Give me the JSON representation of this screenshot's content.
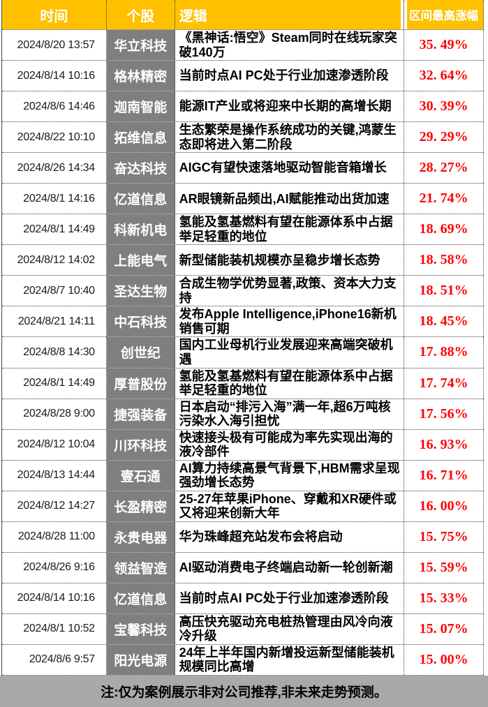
{
  "chart_data": {
    "type": "table",
    "columns": [
      "时间",
      "个股",
      "逻辑",
      "区间最高涨幅"
    ],
    "rows": [
      {
        "time": "2024/8/20 13:57",
        "stock": "华立科技",
        "logic": "《黑神话:悟空》Steam同时在线玩家突破140万",
        "pct": "35. 49%"
      },
      {
        "time": "2024/8/14 10:16",
        "stock": "格林精密",
        "logic": "当前时点AI PC处于行业加速渗透阶段",
        "pct": "32. 64%"
      },
      {
        "time": "2024/8/6 14:46",
        "stock": "迦南智能",
        "logic": "能源IT产业或将迎来中长期的高增长期",
        "pct": "30. 39%"
      },
      {
        "time": "2024/8/22 10:10",
        "stock": "拓维信息",
        "logic": "生态繁荣是操作系统成功的关键,鸿蒙生态即将进入第二阶段",
        "pct": "29. 29%"
      },
      {
        "time": "2024/8/26 14:34",
        "stock": "奋达科技",
        "logic": "AIGC有望快速落地驱动智能音箱增长",
        "pct": "28. 27%"
      },
      {
        "time": "2024/8/1 14:16",
        "stock": "亿道信息",
        "logic": "AR眼镜新品频出,AI赋能推动出货加速",
        "pct": "21. 74%"
      },
      {
        "time": "2024/8/1 14:49",
        "stock": "科新机电",
        "logic": "氢能及氢基燃料有望在能源体系中占据举足轻重的地位",
        "pct": "18. 69%"
      },
      {
        "time": "2024/8/12 14:02",
        "stock": "上能电气",
        "logic": "新型储能装机规模亦呈稳步增长态势",
        "pct": "18. 58%"
      },
      {
        "time": "2024/8/7 10:40",
        "stock": "圣达生物",
        "logic": "合成生物学优势显著,政策、资本大力支持",
        "pct": "18. 51%"
      },
      {
        "time": "2024/8/21 14:11",
        "stock": "中石科技",
        "logic": "发布Apple Intelligence,iPhone16新机销售可期",
        "pct": "18. 45%"
      },
      {
        "time": "2024/8/8 14:30",
        "stock": "创世纪",
        "logic": "国内工业母机行业发展迎来高端突破机遇",
        "pct": "17. 88%"
      },
      {
        "time": "2024/8/1 14:49",
        "stock": "厚普股份",
        "logic": "氢能及氢基燃料有望在能源体系中占据举足轻重的地位",
        "pct": "17. 74%"
      },
      {
        "time": "2024/8/28 9:00",
        "stock": "捷强装备",
        "logic": "日本启动“排污入海”满一年,超6万吨核污染水入海引担忧",
        "pct": "17. 56%"
      },
      {
        "time": "2024/8/12 10:04",
        "stock": "川环科技",
        "logic": "快速接头极有可能成为率先实现出海的液冷部件",
        "pct": "16. 93%"
      },
      {
        "time": "2024/8/13 14:44",
        "stock": "壹石通",
        "logic": "AI算力持续高景气背景下,HBM需求呈现强劲增长态势",
        "pct": "16. 71%"
      },
      {
        "time": "2024/8/12 14:27",
        "stock": "长盈精密",
        "logic": "25-27年苹果iPhone、穿戴和XR硬件或又将迎来创新大年",
        "pct": "16. 00%"
      },
      {
        "time": "2024/8/28 11:00",
        "stock": "永贵电器",
        "logic": "华为珠峰超充站发布会将启动",
        "pct": "15. 75%"
      },
      {
        "time": "2024/8/26 9:16",
        "stock": "领益智造",
        "logic": "AI驱动消费电子终端启动新一轮创新潮",
        "pct": "15. 59%"
      },
      {
        "time": "2024/8/14 10:16",
        "stock": "亿道信息",
        "logic": "当前时点AI PC处于行业加速渗透阶段",
        "pct": "15. 33%"
      },
      {
        "time": "2024/8/1 10:52",
        "stock": "宝馨科技",
        "logic": "高压快充驱动充电桩热管理由风冷向液冷升级",
        "pct": "15. 07%"
      },
      {
        "time": "2024/8/6 9:57",
        "stock": "阳光电源",
        "logic": "24年上半年国内新增投运新型储能装机规模同比高增",
        "pct": "15. 00%"
      }
    ]
  },
  "footer": {
    "note": "注:仅为案例展示非对公司推荐,非未来走势预测。"
  },
  "colors": {
    "header_bg": "#FFC000",
    "stock_cell_bg": "#7F7F7F",
    "footer_bg": "#A9A9A9",
    "pct_text": "#FF0000"
  }
}
